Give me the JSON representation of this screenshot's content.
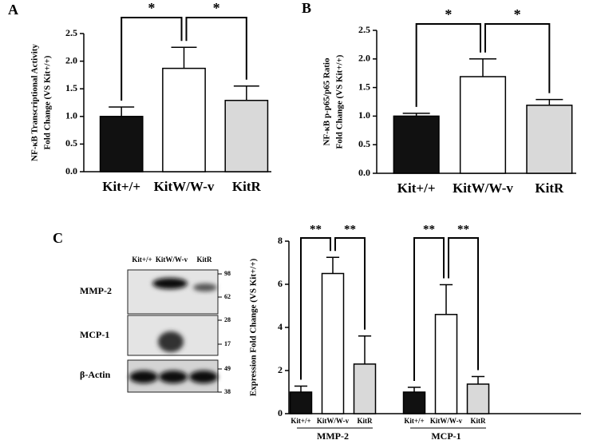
{
  "chart_data": [
    {
      "type": "bar",
      "panel": "A",
      "ylabel": [
        "NF-κB Transcriptional Activity",
        "Fold Change (VS Kit+/+)"
      ],
      "categories": [
        "Kit+/+",
        "KitW/W-v",
        "KitR"
      ],
      "values": [
        1.0,
        1.87,
        1.29
      ],
      "errors": [
        0.17,
        0.38,
        0.26
      ],
      "colors": [
        "#111111",
        "#ffffff",
        "#d9d9d9"
      ],
      "ylim": [
        0,
        2.5
      ],
      "yticks": [
        {
          "value": 0,
          "label": "0.0"
        },
        0.5,
        {
          "value": 1,
          "label": "1.0"
        },
        1.5,
        {
          "value": 2,
          "label": "2.0"
        },
        2.5
      ],
      "significance": [
        "*",
        "*"
      ]
    },
    {
      "type": "bar",
      "panel": "B",
      "ylabel": [
        "NF-κB p-p65/p65 Ratio",
        "Fold Change (VS Kit+/+)"
      ],
      "categories": [
        "Kit+/+",
        "KitW/W-v",
        "KitR"
      ],
      "values": [
        1.0,
        1.69,
        1.19
      ],
      "errors": [
        0.05,
        0.31,
        0.1
      ],
      "colors": [
        "#111111",
        "#ffffff",
        "#d9d9d9"
      ],
      "ylim": [
        0,
        2.5
      ],
      "yticks": [
        {
          "value": 0,
          "label": "0.0"
        },
        0.5,
        {
          "value": 1,
          "label": "1.0"
        },
        1.5,
        {
          "value": 2,
          "label": "2.0"
        },
        2.5
      ],
      "significance": [
        "*",
        "*"
      ]
    },
    {
      "type": "grouped_bar",
      "panel": "C",
      "ylabel": [
        "Expression Fold Change (VS Kit+/+)"
      ],
      "colors": [
        "#111111",
        "#ffffff",
        "#d9d9d9"
      ],
      "ylim": [
        0,
        8
      ],
      "yticks": [
        0,
        2,
        4,
        6,
        8
      ],
      "groups": [
        {
          "name": "MMP-2",
          "categories": [
            "Kit+/+",
            "KitW/W-v",
            "KitR"
          ],
          "values": [
            1.0,
            6.5,
            2.3
          ],
          "errors": [
            0.28,
            0.75,
            1.3
          ],
          "significance": [
            "**",
            "**"
          ]
        },
        {
          "name": "MCP-1",
          "categories": [
            "Kit+/+",
            "KitW/W-v",
            "KitR"
          ],
          "values": [
            1.0,
            4.6,
            1.37
          ],
          "errors": [
            0.22,
            1.38,
            0.35
          ],
          "significance": [
            "**",
            "**"
          ]
        }
      ]
    }
  ],
  "blot": {
    "lanes": [
      "Kit+/+",
      "KitW/W-v",
      "KitR"
    ],
    "rows": [
      {
        "label": "MMP-2",
        "markers": [
          "98",
          "62"
        ]
      },
      {
        "label": "MCP-1",
        "markers": [
          "28",
          "17"
        ]
      },
      {
        "label": "β-Actin",
        "markers": [
          "49",
          "38"
        ]
      }
    ]
  }
}
